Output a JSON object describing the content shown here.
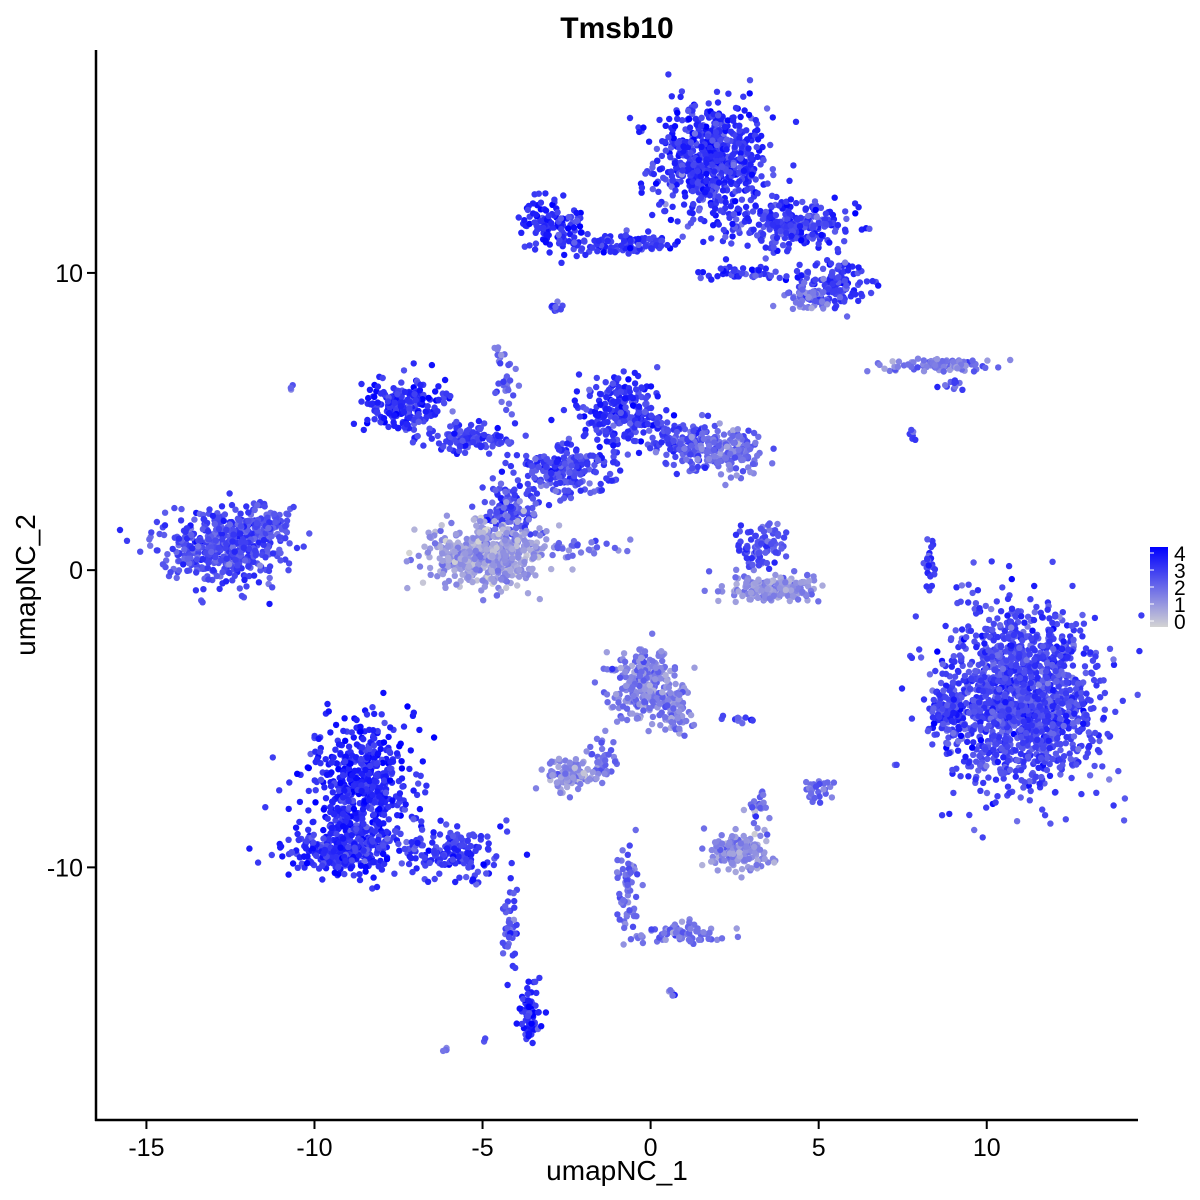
{
  "chart_data": {
    "type": "scatter",
    "title": "Tmsb10",
    "xlabel": "umapNC_1",
    "ylabel": "umapNC_2",
    "xlim": [
      -16.5,
      14.5
    ],
    "ylim": [
      -18.5,
      17.5
    ],
    "x_ticks": [
      -15,
      -10,
      -5,
      0,
      5,
      10
    ],
    "y_ticks": [
      -10,
      0,
      10
    ],
    "grid": false,
    "legend": {
      "position": "right",
      "type": "colorbar",
      "values": [
        0,
        1,
        2,
        3,
        4
      ],
      "labels": [
        "0",
        "1",
        "2",
        "3",
        "4"
      ],
      "low_color": "#d3d3d3",
      "high_color": "#0000ff"
    },
    "clusters": [
      {
        "cx": 1.8,
        "cy": 13.8,
        "rx": 1.4,
        "ry": 1.6,
        "expr": 3.0,
        "n": 650
      },
      {
        "cx": 4.2,
        "cy": 11.6,
        "rx": 1.6,
        "ry": 0.8,
        "expr": 3.0,
        "n": 250
      },
      {
        "cx": 5.5,
        "cy": 9.6,
        "rx": 0.8,
        "ry": 0.6,
        "expr": 2.9,
        "n": 120
      },
      {
        "cx": 4.6,
        "cy": 9.2,
        "rx": 0.6,
        "ry": 0.4,
        "expr": 1.8,
        "n": 50
      },
      {
        "cx": -2.9,
        "cy": 11.6,
        "rx": 0.8,
        "ry": 0.7,
        "expr": 3.2,
        "n": 120
      },
      {
        "cx": -0.8,
        "cy": 11.0,
        "rx": 1.6,
        "ry": 0.25,
        "expr": 2.9,
        "n": 100
      },
      {
        "cx": 2.9,
        "cy": 10.0,
        "rx": 1.5,
        "ry": 0.2,
        "expr": 3.1,
        "n": 50
      },
      {
        "cx": -2.8,
        "cy": 8.9,
        "rx": 0.2,
        "ry": 0.2,
        "expr": 2.5,
        "n": 12
      },
      {
        "cx": 8.7,
        "cy": 6.9,
        "rx": 1.4,
        "ry": 0.2,
        "expr": 1.6,
        "n": 90
      },
      {
        "cx": 9.0,
        "cy": 6.3,
        "rx": 0.3,
        "ry": 0.2,
        "expr": 2.4,
        "n": 12
      },
      {
        "cx": -4.5,
        "cy": 7.3,
        "rx": 0.15,
        "ry": 0.2,
        "expr": 1.8,
        "n": 10
      },
      {
        "cx": -4.3,
        "cy": 6.2,
        "rx": 0.3,
        "ry": 0.8,
        "expr": 2.3,
        "n": 25
      },
      {
        "cx": -7.3,
        "cy": 5.5,
        "rx": 1.0,
        "ry": 0.8,
        "expr": 3.1,
        "n": 230
      },
      {
        "cx": -5.3,
        "cy": 4.4,
        "rx": 1.1,
        "ry": 0.4,
        "expr": 2.8,
        "n": 110
      },
      {
        "cx": -0.9,
        "cy": 5.3,
        "rx": 1.0,
        "ry": 0.9,
        "expr": 3.0,
        "n": 230
      },
      {
        "cx": 1.0,
        "cy": 4.3,
        "rx": 1.0,
        "ry": 0.6,
        "expr": 2.5,
        "n": 160
      },
      {
        "cx": 2.4,
        "cy": 4.0,
        "rx": 0.8,
        "ry": 0.6,
        "expr": 1.9,
        "n": 140
      },
      {
        "cx": -2.4,
        "cy": 3.4,
        "rx": 1.2,
        "ry": 0.7,
        "expr": 2.6,
        "n": 200
      },
      {
        "cx": -4.2,
        "cy": 2.0,
        "rx": 0.6,
        "ry": 0.9,
        "expr": 2.5,
        "n": 120
      },
      {
        "cx": -4.9,
        "cy": 0.5,
        "rx": 1.4,
        "ry": 0.9,
        "expr": 1.1,
        "n": 520
      },
      {
        "cx": -2.0,
        "cy": 0.8,
        "rx": 1.0,
        "ry": 0.3,
        "expr": 2.0,
        "n": 30
      },
      {
        "cx": -12.7,
        "cy": 0.8,
        "rx": 1.5,
        "ry": 1.0,
        "expr": 2.6,
        "n": 480
      },
      {
        "cx": -11.4,
        "cy": 1.6,
        "rx": 0.6,
        "ry": 0.5,
        "expr": 2.4,
        "n": 70
      },
      {
        "cx": -10.7,
        "cy": 6.1,
        "rx": 0.1,
        "ry": 0.1,
        "expr": 2.2,
        "n": 3
      },
      {
        "cx": 3.3,
        "cy": 0.8,
        "rx": 0.6,
        "ry": 0.7,
        "expr": 2.5,
        "n": 90
      },
      {
        "cx": 3.6,
        "cy": -0.6,
        "rx": 1.2,
        "ry": 0.4,
        "expr": 1.3,
        "n": 170
      },
      {
        "cx": 8.3,
        "cy": 0.3,
        "rx": 0.15,
        "ry": 0.8,
        "expr": 2.7,
        "n": 25
      },
      {
        "cx": 7.8,
        "cy": 4.5,
        "rx": 0.15,
        "ry": 0.2,
        "expr": 2.4,
        "n": 6
      },
      {
        "cx": 11.0,
        "cy": -4.3,
        "rx": 1.9,
        "ry": 2.4,
        "expr": 2.7,
        "n": 1500
      },
      {
        "cx": 8.8,
        "cy": -4.8,
        "rx": 0.5,
        "ry": 0.6,
        "expr": 2.9,
        "n": 80
      },
      {
        "cx": -0.2,
        "cy": -3.8,
        "rx": 0.8,
        "ry": 1.0,
        "expr": 1.6,
        "n": 240
      },
      {
        "cx": 0.8,
        "cy": -4.8,
        "rx": 0.4,
        "ry": 0.8,
        "expr": 1.5,
        "n": 70
      },
      {
        "cx": -1.4,
        "cy": -6.3,
        "rx": 0.3,
        "ry": 0.7,
        "expr": 1.9,
        "n": 40
      },
      {
        "cx": -2.4,
        "cy": -6.9,
        "rx": 0.6,
        "ry": 0.4,
        "expr": 1.3,
        "n": 110
      },
      {
        "cx": 2.8,
        "cy": -5.0,
        "rx": 0.5,
        "ry": 0.1,
        "expr": 2.6,
        "n": 12
      },
      {
        "cx": 5.0,
        "cy": -7.4,
        "rx": 0.4,
        "ry": 0.3,
        "expr": 1.9,
        "n": 25
      },
      {
        "cx": 2.6,
        "cy": -9.4,
        "rx": 0.7,
        "ry": 0.5,
        "expr": 1.4,
        "n": 170
      },
      {
        "cx": 3.2,
        "cy": -8.0,
        "rx": 0.3,
        "ry": 0.5,
        "expr": 1.8,
        "n": 25
      },
      {
        "cx": -0.7,
        "cy": -10.6,
        "rx": 0.3,
        "ry": 1.2,
        "expr": 1.9,
        "n": 60
      },
      {
        "cx": 1.0,
        "cy": -12.2,
        "rx": 1.3,
        "ry": 0.25,
        "expr": 1.8,
        "n": 70
      },
      {
        "cx": 0.6,
        "cy": -14.2,
        "rx": 0.1,
        "ry": 0.1,
        "expr": 2.0,
        "n": 6
      },
      {
        "cx": -8.6,
        "cy": -7.2,
        "rx": 1.2,
        "ry": 1.8,
        "expr": 3.3,
        "n": 500
      },
      {
        "cx": -9.2,
        "cy": -9.4,
        "rx": 1.3,
        "ry": 0.7,
        "expr": 3.1,
        "n": 300
      },
      {
        "cx": -6.0,
        "cy": -9.5,
        "rx": 1.4,
        "ry": 0.7,
        "expr": 2.9,
        "n": 170
      },
      {
        "cx": -4.2,
        "cy": -12.2,
        "rx": 0.2,
        "ry": 1.5,
        "expr": 2.5,
        "n": 40
      },
      {
        "cx": -3.6,
        "cy": -15.0,
        "rx": 0.3,
        "ry": 0.8,
        "expr": 3.3,
        "n": 70
      },
      {
        "cx": -6.1,
        "cy": -16.2,
        "rx": 0.1,
        "ry": 0.1,
        "expr": 1.8,
        "n": 4
      },
      {
        "cx": -4.9,
        "cy": -15.8,
        "rx": 0.05,
        "ry": 0.05,
        "expr": 3.0,
        "n": 2
      }
    ]
  }
}
